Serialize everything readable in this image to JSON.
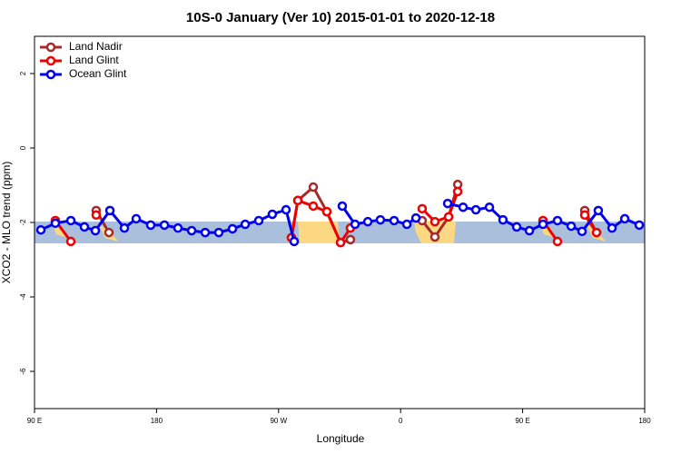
{
  "chart_data": {
    "type": "line",
    "title": "10S-0 January (Ver 10)   2015-01-01 to 2020-12-18",
    "x_label": "Longitude",
    "y_label": "XCO2 - MLO trend (ppm)",
    "xlim": [
      90,
      540
    ],
    "ylim": [
      -7,
      3
    ],
    "xticks": [
      {
        "value": 90,
        "label": "90 E"
      },
      180,
      {
        "value": 270,
        "label": "90 W"
      },
      {
        "value": 360,
        "label": "0"
      },
      {
        "value": 450,
        "label": "90 E"
      },
      {
        "value": 540,
        "label": "180"
      }
    ],
    "yticks": [
      -6,
      -4,
      -2,
      0,
      2
    ],
    "legend": "top-left",
    "series": [
      {
        "name": "Land Nadir",
        "color": "#a52a2a",
        "x": [
          105.4,
          null,
          135.5,
          144.9,
          null,
          279.5,
          284.2,
          295.6,
          305.6,
          315.7,
          323.0,
          null,
          375.9,
          385.3,
          395.4,
          402.1,
          null,
          465.0,
          null,
          495.8,
          504.5
        ],
        "values": [
          -1.95,
          null,
          -1.68,
          -2.27,
          null,
          -2.41,
          -1.41,
          -1.05,
          -1.71,
          -2.54,
          -2.46,
          null,
          -1.95,
          -2.39,
          -1.85,
          -0.98,
          null,
          -1.95,
          null,
          -1.68,
          -2.27
        ]
      },
      {
        "name": "Land Glint",
        "color": "#ee0000",
        "x": [
          105.4,
          116.8,
          null,
          135.5,
          null,
          279.5,
          284.2,
          295.6,
          305.6,
          315.7,
          323.0,
          null,
          375.9,
          385.3,
          395.4,
          402.1,
          null,
          465.0,
          475.7,
          null,
          495.8,
          504.5
        ],
        "values": [
          -1.95,
          -2.51,
          null,
          -1.8,
          null,
          -2.41,
          -1.41,
          -1.56,
          -1.71,
          -2.54,
          -2.15,
          null,
          -1.63,
          -1.98,
          -1.85,
          -1.17,
          null,
          -1.95,
          -2.51,
          null,
          -1.8,
          -2.27
        ]
      },
      {
        "name": "Ocean Glint",
        "color": "#0000ee",
        "x": [
          94.7,
          105.4,
          116.8,
          126.8,
          134.9,
          145.6,
          156.3,
          165.0,
          175.7,
          185.8,
          195.8,
          205.9,
          215.9,
          225.9,
          236.0,
          245.4,
          255.4,
          265.4,
          275.5,
          281.5,
          null,
          317.0,
          326.4,
          335.8,
          345.1,
          355.2,
          364.6,
          371.3,
          null,
          394.7,
          406.1,
          415.5,
          425.5,
          435.5,
          445.6,
          455.0,
          465.0,
          475.7,
          485.8,
          493.8,
          505.8,
          515.9,
          525.3,
          536.0
        ],
        "values": [
          -2.2,
          -2.02,
          -1.95,
          -2.12,
          -2.22,
          -1.68,
          -2.15,
          -1.9,
          -2.07,
          -2.07,
          -2.15,
          -2.22,
          -2.27,
          -2.27,
          -2.17,
          -2.05,
          -1.95,
          -1.78,
          -1.66,
          -2.51,
          null,
          -1.56,
          -2.05,
          -1.98,
          -1.93,
          -1.95,
          -2.05,
          -1.88,
          null,
          -1.49,
          -1.59,
          -1.66,
          -1.59,
          -1.93,
          -2.12,
          -2.22,
          -2.05,
          -1.95,
          -2.1,
          -2.24,
          -1.68,
          -2.15,
          -1.9,
          -2.07
        ]
      }
    ]
  }
}
